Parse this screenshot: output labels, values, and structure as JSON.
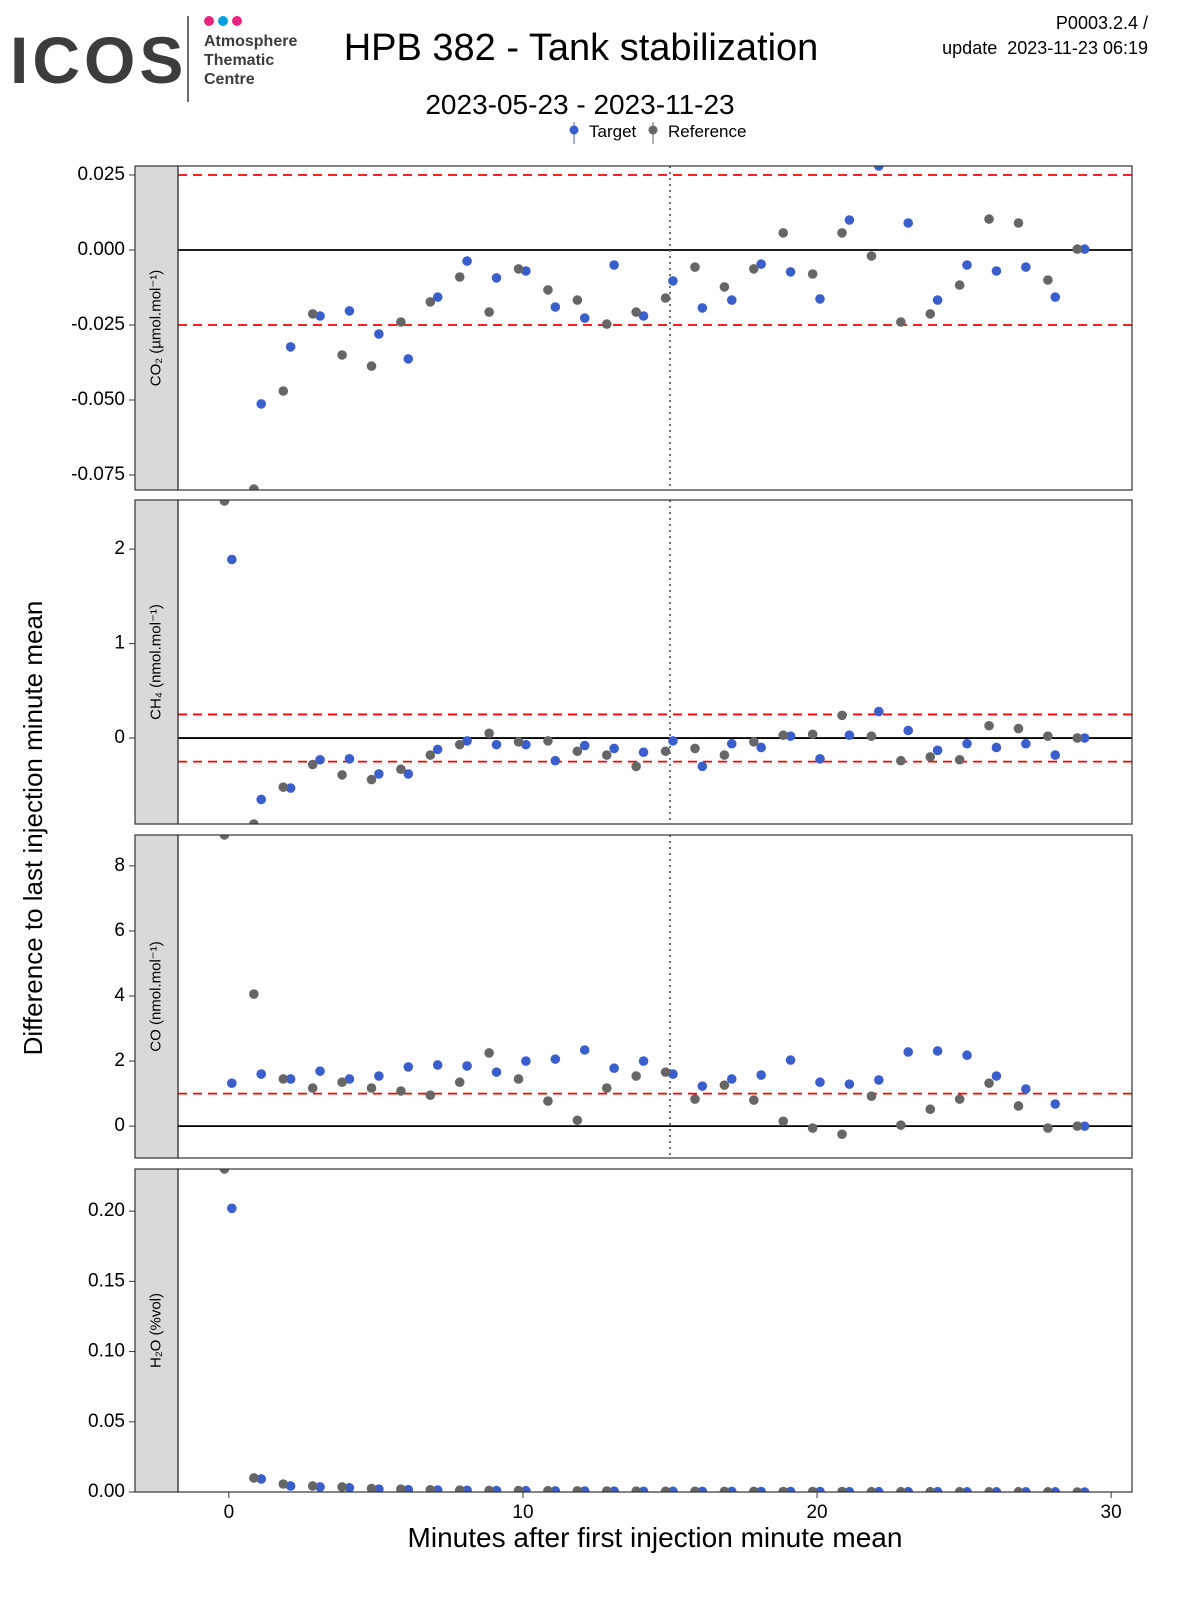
{
  "header": {
    "logo": "ICOS",
    "logo_lines": [
      "Atmosphere",
      "Thematic",
      "Centre"
    ],
    "title": "HPB 382 - Tank stabilization",
    "version": "P0003.2.4 /",
    "update": "update  2023-11-23 06:19",
    "subtitle": "2023-05-23 - 2023-11-23"
  },
  "ylabel": "Difference to last injection minute mean",
  "chart_data": [
    {
      "type": "scatter",
      "strip": "CO₂ (µmol.mol⁻¹)",
      "xlim": [
        -1.73,
        30.71
      ],
      "ylim": [
        -0.08,
        0.028
      ],
      "yticks": [
        {
          "value": -0.075,
          "label": "-0.075"
        },
        {
          "value": -0.05,
          "label": "-0.050"
        },
        {
          "value": -0.025,
          "label": "-0.025"
        },
        {
          "value": 0,
          "label": "0.000"
        },
        {
          "value": 0.025,
          "label": "0.025"
        }
      ],
      "hlines": [
        {
          "value": 0.025,
          "style": "dashed",
          "color": "#ff0000"
        },
        {
          "value": -0.025,
          "style": "dashed",
          "color": "#ff0000"
        },
        {
          "value": 0,
          "style": "solid",
          "color": "#000000"
        }
      ],
      "vline": 15,
      "series": [
        {
          "name": "Target",
          "color": "#3a5fcd",
          "x": [
            0.1,
            1.1,
            2.1,
            3.1,
            4.1,
            5.1,
            6.1,
            7.1,
            8.1,
            9.1,
            10.1,
            11.1,
            12.1,
            13.1,
            14.1,
            15.1,
            16.1,
            17.1,
            18.1,
            19.1,
            20.1,
            21.1,
            22.1,
            23.1,
            24.1,
            25.1,
            26.1,
            27.1,
            28.1,
            29.1
          ],
          "values": [
            null,
            -0.0513,
            -0.0323,
            -0.022,
            -0.0203,
            -0.028,
            -0.0363,
            -0.0157,
            -0.0037,
            -0.0093,
            -0.007,
            -0.019,
            -0.0227,
            -0.005,
            -0.022,
            -0.0103,
            -0.0193,
            -0.0167,
            -0.0047,
            -0.0073,
            -0.0163,
            0.01,
            0.028,
            0.009,
            -0.0167,
            -0.005,
            -0.007,
            -0.0057,
            -0.0157,
            0.0003
          ]
        },
        {
          "name": "Reference",
          "color": "#666666",
          "x": [
            -0.15,
            0.85,
            1.85,
            2.85,
            3.85,
            4.85,
            5.85,
            6.85,
            7.85,
            8.85,
            9.85,
            10.85,
            11.85,
            12.85,
            13.85,
            14.85,
            15.85,
            16.85,
            17.85,
            18.85,
            19.85,
            20.85,
            21.85,
            22.85,
            23.85,
            24.85,
            25.85,
            26.85,
            27.85,
            28.85
          ],
          "values": [
            null,
            -0.0797,
            -0.047,
            -0.0213,
            -0.035,
            -0.0387,
            -0.024,
            -0.0173,
            -0.009,
            -0.0207,
            -0.0063,
            -0.0133,
            -0.0167,
            -0.0247,
            -0.0207,
            -0.016,
            -0.0057,
            -0.0123,
            -0.0063,
            0.0057,
            -0.008,
            0.0057,
            -0.002,
            -0.024,
            -0.0213,
            -0.0117,
            0.0103,
            0.009,
            -0.01,
            0.0003
          ]
        }
      ]
    },
    {
      "type": "scatter",
      "strip": "CH₄ (nmol.mol⁻¹)",
      "xlim": [
        -1.73,
        30.71
      ],
      "ylim": [
        -0.91,
        2.52
      ],
      "yticks": [
        0,
        1,
        2
      ],
      "hlines": [
        {
          "value": 0.25,
          "style": "dashed",
          "color": "#ff0000"
        },
        {
          "value": -0.25,
          "style": "dashed",
          "color": "#ff0000"
        },
        {
          "value": 0,
          "style": "solid",
          "color": "#000000"
        }
      ],
      "vline": 15,
      "series": [
        {
          "name": "Target",
          "color": "#3a5fcd",
          "x": [
            0.1,
            1.1,
            2.1,
            3.1,
            4.1,
            5.1,
            6.1,
            7.1,
            8.1,
            9.1,
            10.1,
            11.1,
            12.1,
            13.1,
            14.1,
            15.1,
            16.1,
            17.1,
            18.1,
            19.1,
            20.1,
            21.1,
            22.1,
            23.1,
            24.1,
            25.1,
            26.1,
            27.1,
            28.1,
            29.1
          ],
          "values": [
            1.89,
            -0.65,
            -0.53,
            -0.23,
            -0.22,
            -0.38,
            -0.38,
            -0.12,
            -0.03,
            -0.07,
            -0.07,
            -0.24,
            -0.08,
            -0.11,
            -0.15,
            -0.03,
            -0.3,
            -0.06,
            -0.1,
            0.02,
            -0.22,
            0.03,
            0.28,
            0.08,
            -0.13,
            -0.06,
            -0.1,
            -0.06,
            -0.18,
            0
          ]
        },
        {
          "name": "Reference",
          "color": "#666666",
          "x": [
            -0.15,
            0.85,
            1.85,
            2.85,
            3.85,
            4.85,
            5.85,
            6.85,
            7.85,
            8.85,
            9.85,
            10.85,
            11.85,
            12.85,
            13.85,
            14.85,
            15.85,
            16.85,
            17.85,
            18.85,
            19.85,
            20.85,
            21.85,
            22.85,
            23.85,
            24.85,
            25.85,
            26.85,
            27.85,
            28.85
          ],
          "values": [
            2.51,
            -0.91,
            -0.52,
            -0.28,
            -0.39,
            -0.44,
            -0.33,
            -0.18,
            -0.07,
            0.05,
            -0.04,
            -0.03,
            -0.14,
            -0.18,
            -0.3,
            -0.14,
            -0.11,
            -0.18,
            -0.04,
            0.03,
            0.04,
            0.24,
            0.02,
            -0.24,
            -0.2,
            -0.23,
            0.13,
            0.1,
            0.02,
            0
          ]
        }
      ]
    },
    {
      "type": "scatter",
      "strip": "CO (nmol.mol⁻¹)",
      "xlim": [
        -1.73,
        30.71
      ],
      "ylim": [
        -0.98,
        8.95
      ],
      "yticks": [
        0,
        2,
        4,
        6,
        8
      ],
      "hlines": [
        {
          "value": 1,
          "style": "dashed",
          "color": "#ff0000"
        },
        {
          "value": 0,
          "style": "solid",
          "color": "#000000"
        }
      ],
      "vline": 15,
      "series": [
        {
          "name": "Target",
          "color": "#3a5fcd",
          "x": [
            0.1,
            1.1,
            2.1,
            3.1,
            4.1,
            5.1,
            6.1,
            7.1,
            8.1,
            9.1,
            10.1,
            11.1,
            12.1,
            13.1,
            14.1,
            15.1,
            16.1,
            17.1,
            18.1,
            19.1,
            20.1,
            21.1,
            22.1,
            23.1,
            24.1,
            25.1,
            26.1,
            27.1,
            28.1,
            29.1
          ],
          "values": [
            1.32,
            1.6,
            1.45,
            1.69,
            1.45,
            1.54,
            1.82,
            1.88,
            1.85,
            1.66,
            2.0,
            2.06,
            2.34,
            1.78,
            2.0,
            1.6,
            1.23,
            1.45,
            1.57,
            2.03,
            1.35,
            1.29,
            1.42,
            2.28,
            2.31,
            2.18,
            1.54,
            1.14,
            0.68,
            0
          ]
        },
        {
          "name": "Reference",
          "color": "#666666",
          "x": [
            -0.15,
            0.85,
            1.85,
            2.85,
            3.85,
            4.85,
            5.85,
            6.85,
            7.85,
            8.85,
            9.85,
            10.85,
            11.85,
            12.85,
            13.85,
            14.85,
            15.85,
            16.85,
            17.85,
            18.85,
            19.85,
            20.85,
            21.85,
            22.85,
            23.85,
            24.85,
            25.85,
            26.85,
            27.85,
            28.85
          ],
          "values": [
            8.95,
            4.06,
            1.45,
            1.17,
            1.35,
            1.17,
            1.08,
            0.95,
            1.35,
            2.25,
            1.45,
            0.77,
            0.18,
            1.17,
            1.54,
            1.66,
            0.83,
            1.26,
            0.8,
            0.15,
            -0.06,
            -0.25,
            0.92,
            0.03,
            0.52,
            0.83,
            1.32,
            0.62,
            -0.06,
            0
          ]
        }
      ]
    },
    {
      "type": "scatter",
      "strip": "H₂O (%vol)",
      "xlim": [
        -1.73,
        30.71
      ],
      "ylim": [
        0,
        0.23
      ],
      "yticks": [
        {
          "value": 0,
          "label": "0.00"
        },
        {
          "value": 0.05,
          "label": "0.05"
        },
        {
          "value": 0.1,
          "label": "0.10"
        },
        {
          "value": 0.15,
          "label": "0.15"
        },
        {
          "value": 0.2,
          "label": "0.20"
        }
      ],
      "xticks": [
        0,
        10,
        20,
        30
      ],
      "xlabel": "Minutes after first injection minute mean",
      "series": [
        {
          "name": "Target",
          "color": "#3a5fcd",
          "x": [
            0.1,
            1.1,
            2.1,
            3.1,
            4.1,
            5.1,
            6.1,
            7.1,
            8.1,
            9.1,
            10.1,
            11.1,
            12.1,
            13.1,
            14.1,
            15.1,
            16.1,
            17.1,
            18.1,
            19.1,
            20.1,
            21.1,
            22.1,
            23.1,
            24.1,
            25.1,
            26.1,
            27.1,
            28.1,
            29.1
          ],
          "values": [
            0.202,
            0.0093,
            0.0043,
            0.0036,
            0.003,
            0.002,
            0.0017,
            0.0014,
            0.0012,
            0.001,
            0.0009,
            0.0008,
            0.0007,
            0.0006,
            0.0005,
            0.0005,
            0.0004,
            0.0004,
            0.0003,
            0.0003,
            0.0003,
            0.0002,
            0.0002,
            0.0002,
            0.0002,
            0.0001,
            0.0001,
            0.0001,
            0.0001,
            0
          ]
        },
        {
          "name": "Reference",
          "color": "#666666",
          "x": [
            -0.15,
            0.85,
            1.85,
            2.85,
            3.85,
            4.85,
            5.85,
            6.85,
            7.85,
            8.85,
            9.85,
            10.85,
            11.85,
            12.85,
            13.85,
            14.85,
            15.85,
            16.85,
            17.85,
            18.85,
            19.85,
            20.85,
            21.85,
            22.85,
            23.85,
            24.85,
            25.85,
            26.85,
            27.85,
            28.85
          ],
          "values": [
            0.23,
            0.01,
            0.0057,
            0.0043,
            0.0036,
            0.0025,
            0.002,
            0.0016,
            0.0013,
            0.0011,
            0.001,
            0.0009,
            0.0008,
            0.0007,
            0.0006,
            0.0005,
            0.0005,
            0.0004,
            0.0004,
            0.0003,
            0.0003,
            0.0003,
            0.0002,
            0.0002,
            0.0002,
            0.0002,
            0.0001,
            0.0001,
            0.0001,
            0
          ]
        }
      ]
    }
  ]
}
